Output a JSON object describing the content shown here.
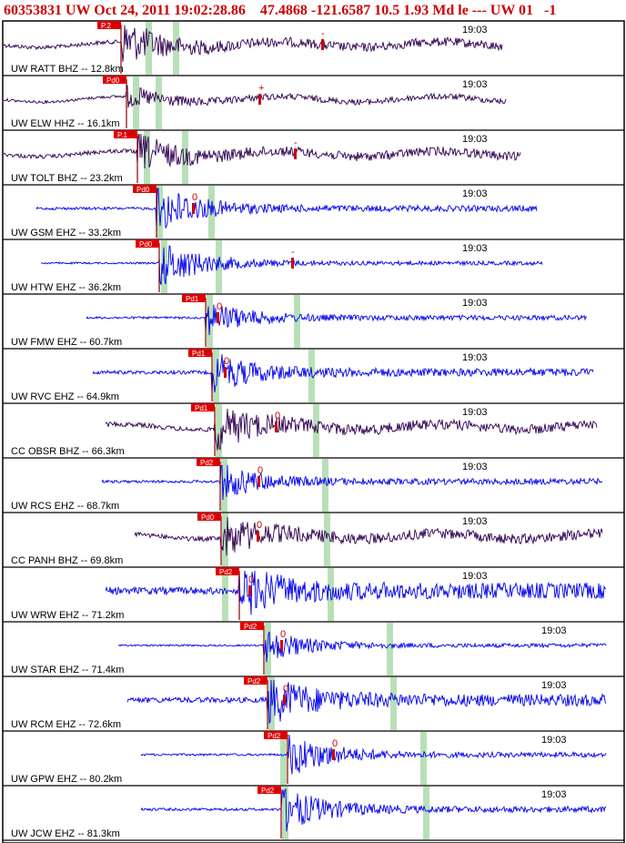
{
  "header": {
    "text": "60353831 UW Oct 24, 2011 19:02:28.86    47.4868 -121.6587 10.5 1.93 Md le --- UW 01   -1"
  },
  "colors": {
    "header_red": "#cc0000",
    "pick_flag": "#dd0000",
    "trace_blue": "#0000ee",
    "trace_dark": "#300050",
    "arrival_band": "#b8e0b8",
    "frame": "#000000"
  },
  "traces": [
    {
      "label": "UW RATT BHZ -- 12.8km",
      "time": "19:03",
      "pick": "P.2",
      "marker": "-",
      "color": "dark"
    },
    {
      "label": "UW ELW HHZ -- 16.1km",
      "time": "19:03",
      "pick": "Pd0",
      "marker": "+",
      "color": "dark"
    },
    {
      "label": "UW TOLT BHZ -- 23.2km",
      "time": "19:03",
      "pick": "P.1",
      "marker": "-",
      "color": "dark"
    },
    {
      "label": "UW GSM EHZ -- 33.2km",
      "time": "19:03",
      "pick": "Pd0",
      "marker": "0",
      "color": "blue"
    },
    {
      "label": "UW HTW EHZ -- 36.2km",
      "time": "19:03",
      "pick": "Pd0",
      "marker": "-",
      "color": "blue"
    },
    {
      "label": "UW FMW EHZ -- 60.7km",
      "time": "19:03",
      "pick": "Pd1",
      "marker": "0",
      "color": "blue"
    },
    {
      "label": "UW RVC EHZ -- 64.9km",
      "time": "19:03",
      "pick": "Pd1",
      "marker": "0",
      "color": "blue"
    },
    {
      "label": "CC OBSR BHZ -- 66.3km",
      "time": "19:03",
      "pick": "Pd1",
      "marker": "0",
      "color": "dark"
    },
    {
      "label": "UW RCS EHZ -- 68.7km",
      "time": "19:03",
      "pick": "Pd2",
      "marker": "0",
      "color": "blue"
    },
    {
      "label": "CC PANH BHZ -- 69.8km",
      "time": "19:03",
      "pick": "Pd0",
      "marker": "0",
      "color": "dark"
    },
    {
      "label": "UW WRW EHZ -- 71.2km",
      "time": "19:03",
      "pick": "Pd2",
      "marker": "0",
      "color": "blue"
    },
    {
      "label": "UW STAR EHZ -- 71.4km",
      "time": "19:03",
      "pick": "Pd2",
      "marker": "0",
      "color": "blue"
    },
    {
      "label": "UW RCM EHZ -- 72.6km",
      "time": "19:03",
      "pick": "Pd2",
      "marker": "0",
      "color": "blue"
    },
    {
      "label": "UW GPW EHZ -- 80.2km",
      "time": "19:03",
      "pick": "Pd2",
      "marker": "0",
      "color": "blue"
    },
    {
      "label": "UW JCW EHZ -- 81.3km",
      "time": "19:03",
      "pick": "Pd2",
      "marker": "0",
      "color": "blue"
    }
  ]
}
